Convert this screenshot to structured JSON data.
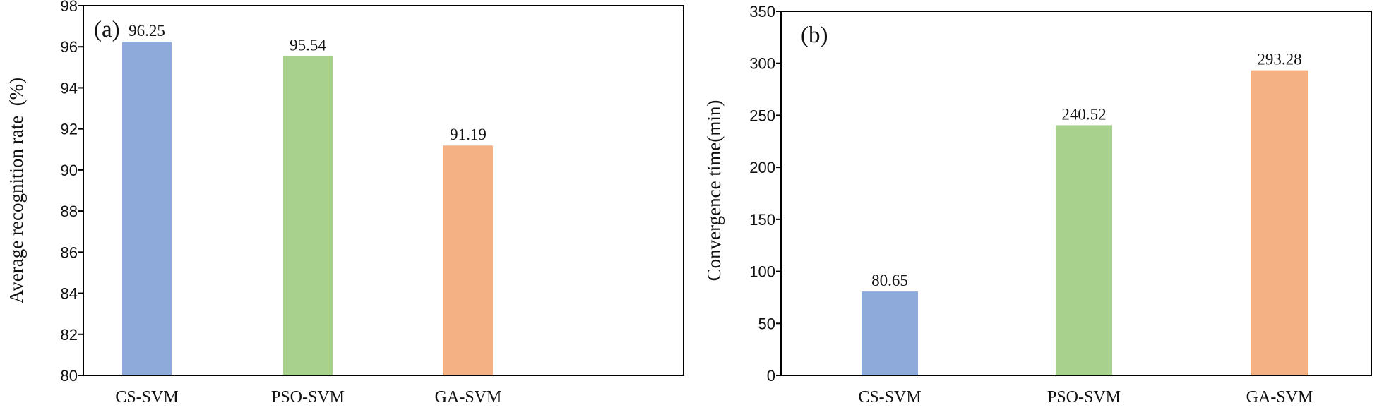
{
  "chart_data": [
    {
      "type": "bar",
      "panel_label": "(a)",
      "ylabel": "Average recognition rate  (%)",
      "xlabel": "",
      "categories": [
        "CS-SVM",
        "PSO-SVM",
        "GA-SVM"
      ],
      "values": [
        96.25,
        95.54,
        91.19
      ],
      "value_labels": [
        "96.25",
        "95.54",
        "91.19"
      ],
      "colors": [
        "#8eaadb",
        "#a9d18e",
        "#f4b183"
      ],
      "ylim": [
        80,
        98
      ],
      "yticks": [
        80,
        82,
        84,
        86,
        88,
        90,
        92,
        94,
        96,
        98
      ],
      "grid": false,
      "legend": "none"
    },
    {
      "type": "bar",
      "panel_label": "(b)",
      "ylabel": "Convergence time(min)",
      "xlabel": "",
      "categories": [
        "CS-SVM",
        "PSO-SVM",
        "GA-SVM"
      ],
      "values": [
        80.65,
        240.52,
        293.28
      ],
      "value_labels": [
        "80.65",
        "240.52",
        "293.28"
      ],
      "colors": [
        "#8eaadb",
        "#a9d18e",
        "#f4b183"
      ],
      "ylim": [
        0,
        350
      ],
      "yticks": [
        0,
        50,
        100,
        150,
        200,
        250,
        300,
        350
      ],
      "grid": false,
      "legend": "none"
    }
  ]
}
